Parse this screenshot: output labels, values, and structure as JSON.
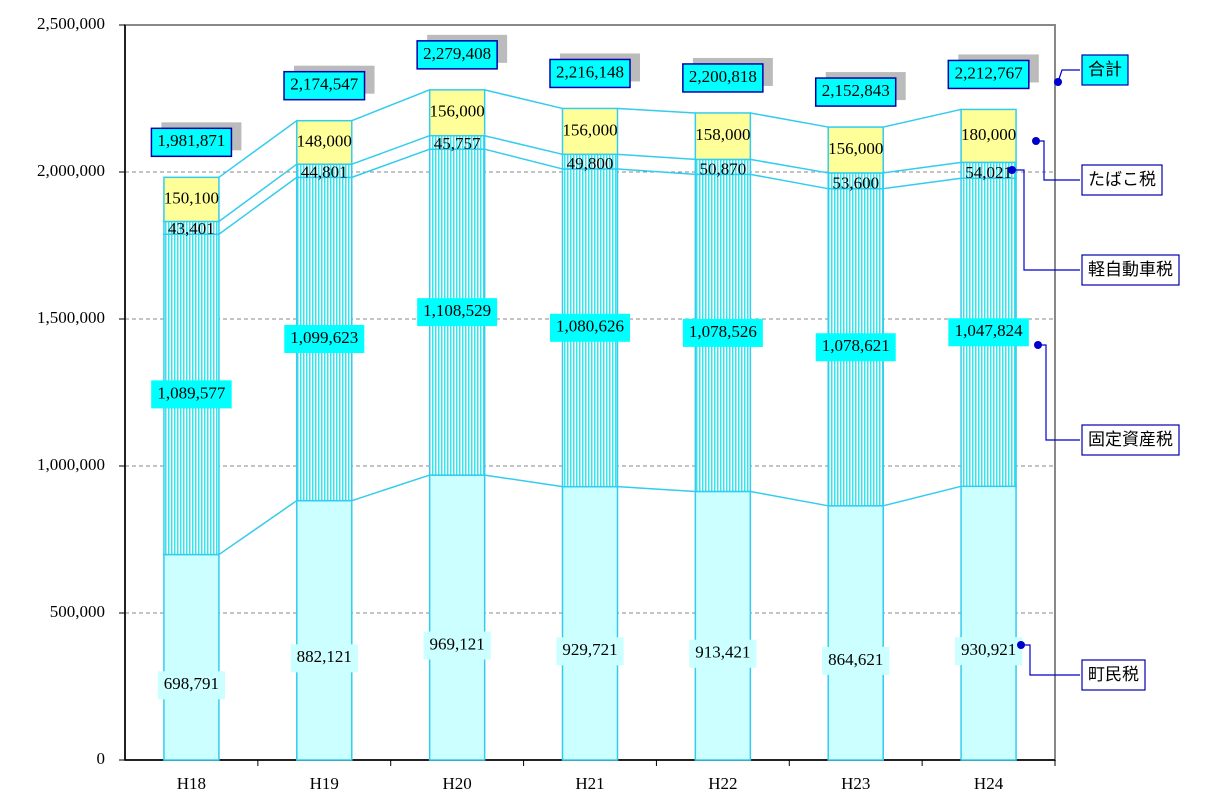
{
  "chart_data": {
    "type": "stacked-bar",
    "categories": [
      "H18",
      "H19",
      "H20",
      "H21",
      "H22",
      "H23",
      "H24"
    ],
    "series": [
      {
        "name": "町民税",
        "color": "#ccffff",
        "pattern": "none",
        "values": [
          698791,
          882121,
          969121,
          929721,
          913421,
          864621,
          930921
        ],
        "value_labels": [
          "698,791",
          "882,121",
          "969,121",
          "929,721",
          "913,421",
          "864,621",
          "930,921"
        ]
      },
      {
        "name": "固定資産税",
        "color": "#33e6ee",
        "pattern": "vertical-lines",
        "values": [
          1089577,
          1099623,
          1108529,
          1080626,
          1078526,
          1078621,
          1047824
        ],
        "value_labels": [
          "1,089,577",
          "1,099,623",
          "1,108,529",
          "1,080,626",
          "1,078,526",
          "1,078,621",
          "1,047,824"
        ]
      },
      {
        "name": "軽自動車税",
        "color": "#33e6ee",
        "pattern": "vertical-lines",
        "values": [
          43401,
          44801,
          45757,
          49800,
          50870,
          53600,
          54021
        ],
        "value_labels": [
          "43,401",
          "44,801",
          "45,757",
          "49,800",
          "50,870",
          "53,600",
          "54,021"
        ]
      },
      {
        "name": "たばこ税",
        "color": "#ffff99",
        "pattern": "none",
        "values": [
          150100,
          148000,
          156000,
          156000,
          158000,
          156000,
          180000
        ],
        "value_labels": [
          "150,100",
          "148,000",
          "156,000",
          "156,000",
          "158,000",
          "156,000",
          "180,000"
        ]
      }
    ],
    "total": {
      "name": "合計",
      "values": [
        1981871,
        2174547,
        2279408,
        2216148,
        2200818,
        2152843,
        2212767
      ],
      "value_labels": [
        "1,981,871",
        "2,174,547",
        "2,279,408",
        "2,216,148",
        "2,200,818",
        "2,152,843",
        "2,212,767"
      ]
    },
    "ylim": [
      0,
      2500000
    ],
    "yticks": [
      0,
      {
        "value": 500000,
        "label": "500,000"
      },
      {
        "value": 1000000,
        "label": "1,000,000"
      },
      {
        "value": 1500000,
        "label": "1,500,000"
      },
      {
        "value": 2000000,
        "label": "2,000,000"
      },
      {
        "value": 2500000,
        "label": "2,500,000"
      }
    ],
    "grid": true
  }
}
